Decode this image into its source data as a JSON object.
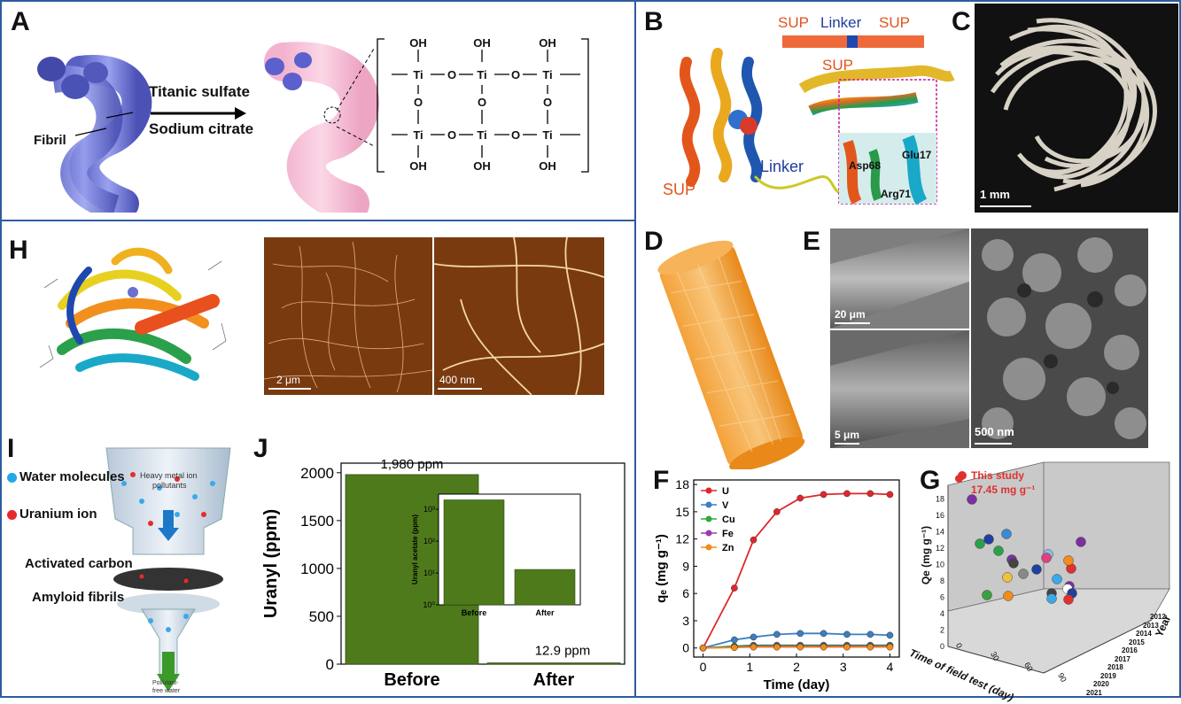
{
  "panels": {
    "A": {
      "label": "A",
      "fibril": "Fibril",
      "reagent1": "Titanic sulfate",
      "reagent2": "Sodium citrate",
      "oh": "OH",
      "ti": "Ti",
      "o": "O"
    },
    "B": {
      "label": "B",
      "sup_left": "SUP",
      "linker_top": "Linker",
      "sup_right": "SUP",
      "sup_mid": "SUP",
      "sup_bottom": "SUP",
      "linker_mid": "Linker",
      "asp": "Asp68",
      "glu": "Glu17",
      "arg": "Arg71"
    },
    "C": {
      "label": "C",
      "scale": "1 mm"
    },
    "D": {
      "label": "D"
    },
    "E": {
      "label": "E",
      "scale1": "20 μm",
      "scale2": "5 μm",
      "scale3": "500 nm"
    },
    "H": {
      "label": "H",
      "scale1": "2 μm",
      "scale2": "400 nm"
    },
    "I": {
      "label": "I",
      "water": "Water molecules",
      "uranium": "Uranium ion",
      "heavy": "Heavy metal ion",
      "heavy2": "pollutants",
      "carbon": "Activated carbon",
      "amyloid": "Amyloid fibrils",
      "out1": "Pollutant-",
      "out2": "free water"
    },
    "J": {
      "label": "J"
    },
    "F": {
      "label": "F"
    },
    "G": {
      "label": "G",
      "this_study": "This study",
      "this_value": "17.45 mg g⁻¹",
      "zlabel": "Qe (mg g⁻¹)",
      "xlabel": "Time of field test (day)",
      "ylabel": "Year",
      "zticks": [
        "0",
        "2",
        "4",
        "6",
        "8",
        "10",
        "12",
        "14",
        "16",
        "18"
      ],
      "xticks": [
        "0",
        "30",
        "60",
        "90"
      ],
      "years": [
        "2012",
        "2013",
        "2014",
        "2015",
        "2016",
        "2017",
        "2018",
        "2019",
        "2020",
        "2021"
      ]
    }
  },
  "chart_data": [
    {
      "type": "bar",
      "panel": "J",
      "categories": [
        "Before",
        "After"
      ],
      "values": [
        1980,
        12.9
      ],
      "data_labels": [
        "1,980 ppm",
        "12.9 ppm"
      ],
      "ylabel": "Uranyl (ppm)",
      "ylim": [
        0,
        2100
      ],
      "yticks": [
        0,
        500,
        1000,
        1500,
        2000
      ],
      "color": "#4e7a1c",
      "inset": {
        "type": "bar",
        "categories": [
          "Before",
          "After"
        ],
        "values": [
          1980,
          12.9
        ],
        "ylabel": "Uranyl acetate (ppm)",
        "yscale": "log",
        "ylim": [
          1,
          3000
        ],
        "yticks": [
          "10⁰",
          "10¹",
          "10²",
          "10³"
        ]
      }
    },
    {
      "type": "line",
      "panel": "F",
      "x": [
        0,
        0.67,
        1.08,
        1.58,
        2.08,
        2.58,
        3.08,
        3.58,
        4
      ],
      "xticks": [
        0,
        1,
        2,
        3,
        4
      ],
      "yticks": [
        0,
        3,
        6,
        9,
        12,
        15,
        18
      ],
      "xlabel": "Time (day)",
      "ylabel": "qₑ (mg g⁻¹)",
      "xlim": [
        -0.2,
        4.2
      ],
      "ylim": [
        -1,
        18.5
      ],
      "legend": "top-left",
      "series": [
        {
          "name": "U",
          "color": "#e0262a",
          "values": [
            0,
            6.6,
            11.9,
            15.0,
            16.5,
            16.9,
            17.0,
            17.0,
            16.9
          ]
        },
        {
          "name": "V",
          "color": "#3a7fc2",
          "values": [
            0,
            0.9,
            1.2,
            1.5,
            1.6,
            1.6,
            1.5,
            1.5,
            1.4
          ]
        },
        {
          "name": "Cu",
          "color": "#2faa3c",
          "values": [
            0,
            0.2,
            0.3,
            0.3,
            0.3,
            0.3,
            0.3,
            0.3,
            0.3
          ]
        },
        {
          "name": "Fe",
          "color": "#9b3ab5",
          "values": [
            0,
            0.1,
            0.2,
            0.2,
            0.2,
            0.2,
            0.2,
            0.2,
            0.2
          ]
        },
        {
          "name": "Zn",
          "color": "#f28c1e",
          "values": [
            0,
            0.05,
            0.1,
            0.1,
            0.1,
            0.1,
            0.1,
            0.1,
            0.1
          ]
        }
      ]
    }
  ]
}
